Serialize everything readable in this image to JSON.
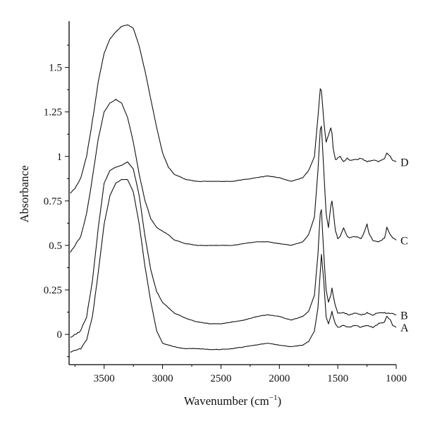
{
  "chart_data": {
    "type": "line",
    "title": "",
    "xlabel": "Wavenumber (cm",
    "xlabel_sup": "−1",
    "xlabel_close": ")",
    "ylabel": "Absorbance",
    "x_reversed": true,
    "xlim": [
      3800,
      1000
    ],
    "ylim": [
      -0.17,
      1.76
    ],
    "grid": false,
    "x_ticks": [
      3500,
      3000,
      2500,
      2000,
      1500,
      1000
    ],
    "x_tick_labels": [
      "3500",
      "3000",
      "2500",
      "2000",
      "1500",
      "1000"
    ],
    "y_ticks": [
      0,
      0.25,
      0.5,
      0.75,
      1,
      1.25,
      1.5
    ],
    "y_tick_labels": [
      "0",
      "0.25",
      "0.5",
      "0.75",
      "1",
      "1.25",
      "1.5"
    ],
    "series": [
      {
        "name": "A",
        "x": [
          3790,
          3700,
          3650,
          3600,
          3550,
          3500,
          3450,
          3400,
          3350,
          3300,
          3250,
          3200,
          3150,
          3100,
          3050,
          3000,
          2900,
          2800,
          2700,
          2600,
          2500,
          2400,
          2300,
          2200,
          2100,
          2000,
          1900,
          1800,
          1750,
          1700,
          1670,
          1650,
          1640,
          1620,
          1600,
          1580,
          1560,
          1550,
          1540,
          1520,
          1500,
          1450,
          1400,
          1350,
          1300,
          1250,
          1200,
          1150,
          1100,
          1080,
          1050,
          1030,
          1000
        ],
        "y": [
          -0.1,
          -0.08,
          -0.03,
          0.1,
          0.35,
          0.62,
          0.78,
          0.85,
          0.87,
          0.87,
          0.8,
          0.62,
          0.38,
          0.18,
          0.02,
          -0.05,
          -0.07,
          -0.08,
          -0.08,
          -0.085,
          -0.085,
          -0.08,
          -0.07,
          -0.06,
          -0.05,
          -0.06,
          -0.07,
          -0.06,
          -0.04,
          0.02,
          0.15,
          0.35,
          0.45,
          0.3,
          0.1,
          0.06,
          0.1,
          0.13,
          0.1,
          0.06,
          0.04,
          0.05,
          0.04,
          0.05,
          0.04,
          0.05,
          0.04,
          0.06,
          0.07,
          0.1,
          0.08,
          0.05,
          0.04
        ]
      },
      {
        "name": "B",
        "x": [
          3790,
          3700,
          3650,
          3600,
          3550,
          3500,
          3450,
          3400,
          3350,
          3300,
          3250,
          3200,
          3150,
          3100,
          3050,
          3000,
          2900,
          2800,
          2700,
          2600,
          2500,
          2400,
          2300,
          2200,
          2100,
          2000,
          1900,
          1800,
          1750,
          1700,
          1670,
          1650,
          1640,
          1620,
          1600,
          1580,
          1560,
          1550,
          1540,
          1520,
          1500,
          1450,
          1400,
          1350,
          1300,
          1250,
          1200,
          1150,
          1100,
          1050,
          1000
        ],
        "y": [
          -0.02,
          0.02,
          0.1,
          0.3,
          0.6,
          0.85,
          0.92,
          0.94,
          0.95,
          0.97,
          0.93,
          0.78,
          0.55,
          0.36,
          0.24,
          0.18,
          0.12,
          0.09,
          0.07,
          0.06,
          0.06,
          0.07,
          0.08,
          0.1,
          0.11,
          0.1,
          0.08,
          0.1,
          0.13,
          0.22,
          0.45,
          0.68,
          0.7,
          0.45,
          0.25,
          0.18,
          0.22,
          0.26,
          0.22,
          0.16,
          0.12,
          0.12,
          0.11,
          0.12,
          0.11,
          0.12,
          0.11,
          0.12,
          0.12,
          0.12,
          0.11
        ]
      },
      {
        "name": "C",
        "x": [
          3790,
          3750,
          3700,
          3650,
          3600,
          3550,
          3500,
          3450,
          3400,
          3350,
          3300,
          3250,
          3200,
          3150,
          3100,
          3050,
          3000,
          2950,
          2900,
          2800,
          2700,
          2600,
          2500,
          2400,
          2300,
          2200,
          2100,
          2000,
          1900,
          1800,
          1750,
          1700,
          1670,
          1650,
          1640,
          1620,
          1600,
          1580,
          1560,
          1550,
          1540,
          1520,
          1500,
          1480,
          1450,
          1420,
          1400,
          1350,
          1300,
          1270,
          1250,
          1230,
          1200,
          1150,
          1100,
          1080,
          1050,
          1030,
          1000
        ],
        "y": [
          0.46,
          0.5,
          0.55,
          0.68,
          0.88,
          1.1,
          1.25,
          1.3,
          1.32,
          1.3,
          1.22,
          1.08,
          0.9,
          0.75,
          0.65,
          0.6,
          0.58,
          0.56,
          0.53,
          0.51,
          0.5,
          0.5,
          0.5,
          0.5,
          0.51,
          0.52,
          0.52,
          0.51,
          0.5,
          0.52,
          0.56,
          0.66,
          0.92,
          1.15,
          1.17,
          0.92,
          0.68,
          0.6,
          0.72,
          0.75,
          0.7,
          0.58,
          0.54,
          0.55,
          0.6,
          0.55,
          0.54,
          0.55,
          0.54,
          0.58,
          0.62,
          0.56,
          0.53,
          0.52,
          0.54,
          0.6,
          0.56,
          0.54,
          0.53
        ]
      },
      {
        "name": "D",
        "x": [
          3790,
          3750,
          3700,
          3650,
          3600,
          3550,
          3500,
          3450,
          3400,
          3350,
          3300,
          3250,
          3200,
          3150,
          3100,
          3050,
          3000,
          2950,
          2900,
          2800,
          2700,
          2600,
          2500,
          2400,
          2300,
          2200,
          2100,
          2000,
          1900,
          1800,
          1750,
          1700,
          1670,
          1650,
          1640,
          1620,
          1600,
          1580,
          1560,
          1550,
          1540,
          1520,
          1500,
          1480,
          1450,
          1420,
          1400,
          1350,
          1300,
          1250,
          1200,
          1150,
          1100,
          1080,
          1050,
          1030,
          1000
        ],
        "y": [
          0.79,
          0.82,
          0.88,
          1.0,
          1.2,
          1.42,
          1.58,
          1.66,
          1.7,
          1.73,
          1.74,
          1.72,
          1.62,
          1.48,
          1.32,
          1.16,
          1.02,
          0.94,
          0.9,
          0.87,
          0.86,
          0.86,
          0.86,
          0.86,
          0.87,
          0.88,
          0.89,
          0.88,
          0.86,
          0.88,
          0.92,
          1.0,
          1.22,
          1.38,
          1.37,
          1.2,
          1.08,
          1.12,
          1.16,
          1.13,
          1.05,
          0.98,
          0.99,
          1.0,
          0.97,
          0.99,
          0.98,
          0.98,
          0.99,
          0.97,
          0.98,
          0.97,
          0.99,
          1.02,
          1.0,
          0.98,
          0.97
        ]
      }
    ]
  }
}
